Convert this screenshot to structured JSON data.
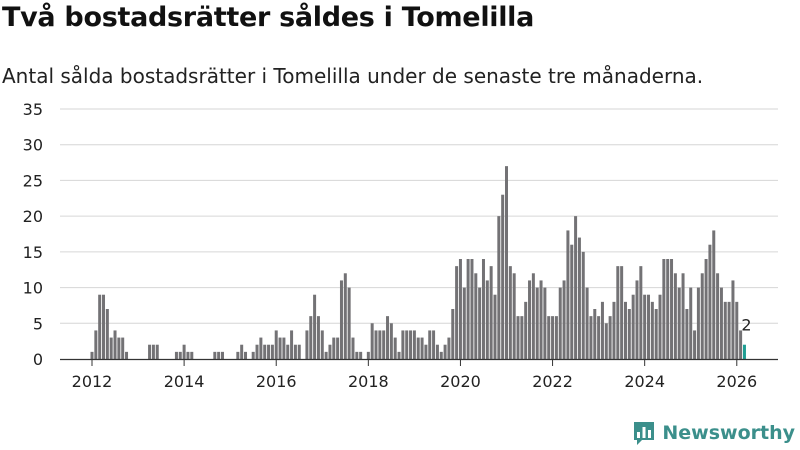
{
  "headline": "Två bostadsrätter såldes i Tomelilla",
  "subheading": "Antal sålda bostadsrätter i Tomelilla under de senaste tre månaderna.",
  "brand": "Newsworthy",
  "colors": {
    "bar": "#737275",
    "highlight": "#1f9e93",
    "grid": "#d6d6d6",
    "brand": "#3b8f8b"
  },
  "chart_data": {
    "type": "bar",
    "title": "Två bostadsrätter såldes i Tomelilla",
    "subtitle": "Antal sålda bostadsrätter i Tomelilla under de senaste tre månaderna.",
    "start": "2012-01",
    "interval": "month",
    "ylim": [
      0,
      35
    ],
    "yticks": [
      0,
      5,
      10,
      15,
      20,
      25,
      30,
      35
    ],
    "xticks": [
      "2012",
      "2014",
      "2016",
      "2018",
      "2020",
      "2022",
      "2024",
      "2026"
    ],
    "grid": true,
    "values": [
      1,
      4,
      9,
      9,
      7,
      3,
      4,
      3,
      3,
      1,
      0,
      0,
      0,
      0,
      0,
      2,
      2,
      2,
      0,
      0,
      0,
      0,
      1,
      1,
      2,
      1,
      1,
      0,
      0,
      0,
      0,
      0,
      1,
      1,
      1,
      0,
      0,
      0,
      1,
      2,
      1,
      0,
      1,
      2,
      3,
      2,
      2,
      2,
      4,
      3,
      3,
      2,
      4,
      2,
      2,
      0,
      4,
      6,
      9,
      6,
      4,
      1,
      2,
      3,
      3,
      11,
      12,
      10,
      3,
      1,
      1,
      0,
      1,
      5,
      4,
      4,
      4,
      6,
      5,
      3,
      1,
      4,
      4,
      4,
      4,
      3,
      3,
      2,
      4,
      4,
      2,
      1,
      2,
      3,
      7,
      13,
      14,
      10,
      14,
      14,
      12,
      10,
      14,
      11,
      13,
      9,
      20,
      23,
      27,
      13,
      12,
      6,
      6,
      8,
      11,
      12,
      10,
      11,
      10,
      6,
      6,
      6,
      10,
      11,
      18,
      16,
      20,
      17,
      15,
      10,
      6,
      7,
      6,
      8,
      5,
      6,
      8,
      13,
      13,
      8,
      7,
      9,
      11,
      13,
      9,
      9,
      8,
      7,
      9,
      14,
      14,
      14,
      12,
      10,
      12,
      7,
      10,
      4,
      10,
      12,
      14,
      16,
      18,
      12,
      10,
      8,
      8,
      11,
      8,
      4,
      2
    ],
    "highlight_last": true,
    "annotation": "2"
  }
}
